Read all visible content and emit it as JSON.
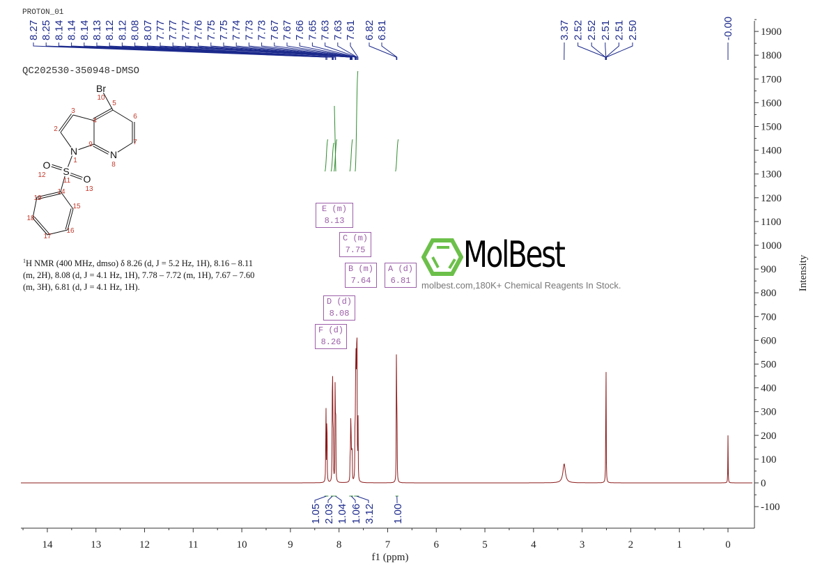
{
  "header": {
    "experiment": "PROTON_01",
    "sample": "QC202530-350948-DMSO"
  },
  "nmr_description": {
    "sup": "1",
    "text": "H NMR (400 MHz, dmso) δ 8.26 (d, J = 5.2 Hz, 1H), 8.16 – 8.11 (m, 2H), 8.08 (d, J = 4.1 Hz, 1H), 7.78 – 7.72 (m, 1H), 7.67 – 7.60 (m, 3H), 6.81 (d, J = 4.1 Hz, 1H)."
  },
  "structure": {
    "atoms": [
      "Br",
      "N",
      "N",
      "S",
      "O",
      "O"
    ],
    "numbers": [
      "1",
      "2",
      "3",
      "4",
      "5",
      "6",
      "7",
      "8",
      "9",
      "10",
      "11",
      "12",
      "13",
      "14",
      "15",
      "16",
      "17",
      "18",
      "19"
    ]
  },
  "multiplets": [
    {
      "label": "E (m)",
      "value": "8.13"
    },
    {
      "label": "C (m)",
      "value": "7.75"
    },
    {
      "label": "B (m)",
      "value": "7.64"
    },
    {
      "label": "A (d)",
      "value": "6.81"
    },
    {
      "label": "D (d)",
      "value": "8.08"
    },
    {
      "label": "F (d)",
      "value": "8.26"
    }
  ],
  "watermark": {
    "brand": "MolBest",
    "tagline": "molbest.com,180K+ Chemical Reagents In Stock."
  },
  "colors": {
    "spectrum": "#8b1a1a",
    "peak_labels": "#1c2a8c",
    "integrals": "#2e8b2e",
    "multiplet_box": "#9b5ea8",
    "logo_green": "#6cc04a"
  },
  "chart_data": {
    "type": "line",
    "xlabel": "f1 (ppm)",
    "ylabel": "Intensity",
    "xlim": [
      14.6,
      -0.5
    ],
    "x_reversed": true,
    "ylim": [
      -150,
      1950
    ],
    "xticks": [
      "14",
      "13",
      "12",
      "11",
      "10",
      "9",
      "8",
      "7",
      "6",
      "5",
      "4",
      "3",
      "2",
      "1",
      "0"
    ],
    "yticks": [
      "-100",
      "0",
      "100",
      "200",
      "300",
      "400",
      "500",
      "600",
      "700",
      "800",
      "900",
      "1000",
      "1100",
      "1200",
      "1300",
      "1400",
      "1500",
      "1600",
      "1700",
      "1800",
      "1900"
    ],
    "grid": false,
    "peaks": [
      {
        "ppm": 8.27,
        "intensity": 430
      },
      {
        "ppm": 8.25,
        "intensity": 440
      },
      {
        "ppm": 8.14,
        "intensity": 350
      },
      {
        "ppm": 8.13,
        "intensity": 440
      },
      {
        "ppm": 8.12,
        "intensity": 300
      },
      {
        "ppm": 8.08,
        "intensity": 440
      },
      {
        "ppm": 8.07,
        "intensity": 430
      },
      {
        "ppm": 7.77,
        "intensity": 160
      },
      {
        "ppm": 7.76,
        "intensity": 240
      },
      {
        "ppm": 7.75,
        "intensity": 200
      },
      {
        "ppm": 7.74,
        "intensity": 150
      },
      {
        "ppm": 7.73,
        "intensity": 110
      },
      {
        "ppm": 7.67,
        "intensity": 320
      },
      {
        "ppm": 7.66,
        "intensity": 400
      },
      {
        "ppm": 7.65,
        "intensity": 500
      },
      {
        "ppm": 7.64,
        "intensity": 720
      },
      {
        "ppm": 7.63,
        "intensity": 500
      },
      {
        "ppm": 7.61,
        "intensity": 300
      },
      {
        "ppm": 6.82,
        "intensity": 500
      },
      {
        "ppm": 6.81,
        "intensity": 490
      },
      {
        "ppm": 3.37,
        "intensity": 80,
        "broad": true
      },
      {
        "ppm": 2.51,
        "intensity": 700
      },
      {
        "ppm": 0.0,
        "intensity": 200
      }
    ],
    "peak_labels_left": [
      "8.27",
      "8.25",
      "8.14",
      "8.14",
      "8.14",
      "8.13",
      "8.12",
      "8.12",
      "8.08",
      "8.07",
      "7.77",
      "7.77",
      "7.77",
      "7.76",
      "7.75",
      "7.75",
      "7.74",
      "7.73",
      "7.73",
      "7.67",
      "7.67",
      "7.66",
      "7.65",
      "7.63",
      "7.63",
      "7.61"
    ],
    "peak_labels_pair": [
      "6.82",
      "6.81"
    ],
    "peak_labels_right": [
      "3.37",
      "2.52",
      "2.52",
      "2.51",
      "2.51",
      "2.50"
    ],
    "peak_label_tms": "-0.00",
    "integrals": [
      {
        "from": 8.3,
        "to": 8.22,
        "value": "1.05"
      },
      {
        "from": 8.17,
        "to": 8.1,
        "value": "2.03"
      },
      {
        "from": 8.1,
        "to": 8.05,
        "value": "1.04"
      },
      {
        "from": 7.79,
        "to": 7.71,
        "value": "1.06"
      },
      {
        "from": 7.69,
        "to": 7.59,
        "value": "3.12"
      },
      {
        "from": 6.84,
        "to": 6.78,
        "value": "1.00"
      }
    ]
  }
}
